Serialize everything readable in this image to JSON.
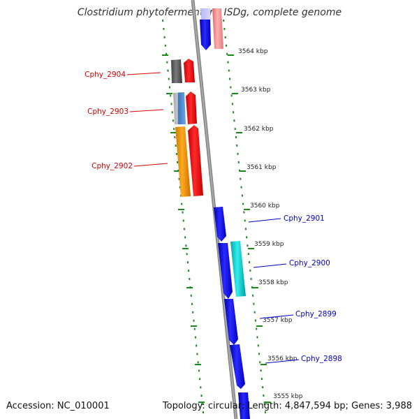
{
  "title": "Clostridium phytofermentans ISDg, complete genome",
  "footer": {
    "accession": "Accession: NC_010001",
    "summary": "Topology: circular; Length: 4,847,594 bp; Genes: 3,988"
  },
  "scale_ticks": [
    "3564 kbp",
    "3563 kbp",
    "3562 kbp",
    "3561 kbp",
    "3560 kbp",
    "3559 kbp",
    "3558 kbp",
    "3557 kbp",
    "3556 kbp",
    "3555 kbp"
  ],
  "labeled_genes": [
    {
      "name": "Cphy_2904",
      "color": "#d40000"
    },
    {
      "name": "Cphy_2903",
      "color": "#d40000"
    },
    {
      "name": "Cphy_2902",
      "color": "#d40000"
    },
    {
      "name": "Cphy_2901",
      "color": "#0000c8"
    },
    {
      "name": "Cphy_2900",
      "color": "#0000c8"
    },
    {
      "name": "Cphy_2899",
      "color": "#0000c8"
    },
    {
      "name": "Cphy_2898",
      "color": "#0000c8"
    }
  ],
  "colors": {
    "backbone": "#888888",
    "dots": "#1a8a1a",
    "forward_strand": "#0000ee",
    "reverse_strand": "#ff0000",
    "cyan_feature": "#00c8c8",
    "orange_feature": "#ff9900",
    "gray_feature": "#555555",
    "light_blue_feature": "#5b8fd0",
    "pink_feature": "#f08080",
    "label_red": "#d40000",
    "label_blue": "#0000c8"
  }
}
